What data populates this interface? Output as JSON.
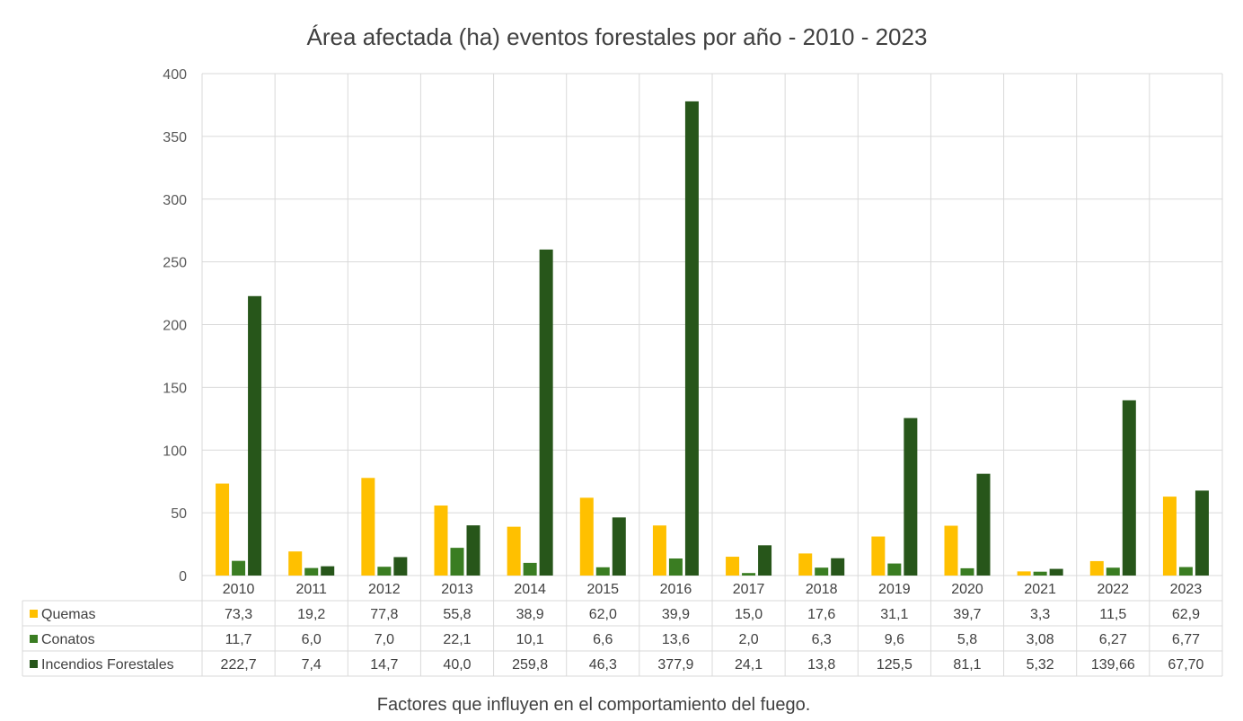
{
  "chart_data": {
    "type": "bar",
    "title": "Área afectada (ha) eventos forestales por año - 2010 - 2023",
    "caption": "Factores que influyen en el comportamiento del fuego.",
    "categories": [
      "2010",
      "2011",
      "2012",
      "2013",
      "2014",
      "2015",
      "2016",
      "2017",
      "2018",
      "2019",
      "2020",
      "2021",
      "2022",
      "2023"
    ],
    "ylim": [
      0,
      400
    ],
    "yticks": [
      "0",
      "50",
      "100",
      "150",
      "200",
      "250",
      "300",
      "350",
      "400"
    ],
    "grid": true,
    "legend": "data-table",
    "series": [
      {
        "name": "Quemas",
        "color": "#FFC000",
        "values": [
          73.3,
          19.2,
          77.8,
          55.8,
          38.9,
          62.0,
          39.9,
          15.0,
          17.6,
          31.1,
          39.7,
          3.3,
          11.5,
          62.9
        ],
        "labels": [
          "73,3",
          "19,2",
          "77,8",
          "55,8",
          "38,9",
          "62,0",
          "39,9",
          "15,0",
          "17,6",
          "31,1",
          "39,7",
          "3,3",
          "11,5",
          "62,9"
        ]
      },
      {
        "name": "Conatos",
        "color": "#3A7D22",
        "values": [
          11.7,
          6.0,
          7.0,
          22.1,
          10.1,
          6.6,
          13.6,
          2.0,
          6.3,
          9.6,
          5.8,
          3.08,
          6.27,
          6.77
        ],
        "labels": [
          "11,7",
          "6,0",
          "7,0",
          "22,1",
          "10,1",
          "6,6",
          "13,6",
          "2,0",
          "6,3",
          "9,6",
          "5,8",
          "3,08",
          "6,27",
          "6,77"
        ]
      },
      {
        "name": "Incendios Forestales",
        "color": "#27561A",
        "values": [
          222.7,
          7.4,
          14.7,
          40.0,
          259.8,
          46.3,
          377.9,
          24.1,
          13.8,
          125.5,
          81.1,
          5.32,
          139.66,
          67.7
        ],
        "labels": [
          "222,7",
          "7,4",
          "14,7",
          "40,0",
          "259,8",
          "46,3",
          "377,9",
          "24,1",
          "13,8",
          "125,5",
          "81,1",
          "5,32",
          "139,66",
          "67,70"
        ]
      }
    ]
  }
}
